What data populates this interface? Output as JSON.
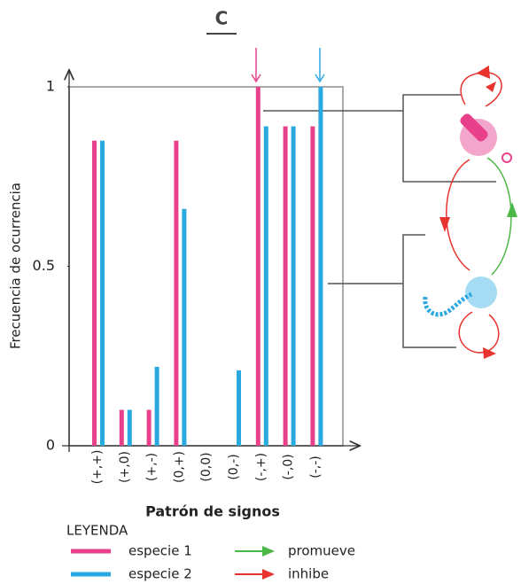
{
  "chart_data": {
    "type": "bar",
    "title": "C",
    "y_label": "Frecuencia de ocurrencia",
    "x_label": "Patrón de signos",
    "categories": [
      "(+,+)",
      "(+,0)",
      "(+,-)",
      "(0,+)",
      "(0,0)",
      "(0,-)",
      "(-,+)",
      "(-,0)",
      "(-,-)"
    ],
    "series": [
      {
        "name": "especie 1",
        "color": "#e8408a",
        "values": [
          0.85,
          0.1,
          0.1,
          0.85,
          0,
          0,
          1.0,
          0.89,
          0.89
        ]
      },
      {
        "name": "especie 2",
        "color": "#2aa8e0",
        "values": [
          0.85,
          0.1,
          0.22,
          0.66,
          0,
          0.21,
          0.89,
          0.89,
          1.0
        ]
      }
    ],
    "ylim": [
      0,
      1
    ],
    "yticks": [
      0,
      0.5,
      1
    ],
    "legend": {
      "title": "LEYENDA",
      "arrows": [
        {
          "label": "promueve",
          "color": "#4cb848"
        },
        {
          "label": "inhibe",
          "color": "#e8332f"
        }
      ]
    }
  }
}
